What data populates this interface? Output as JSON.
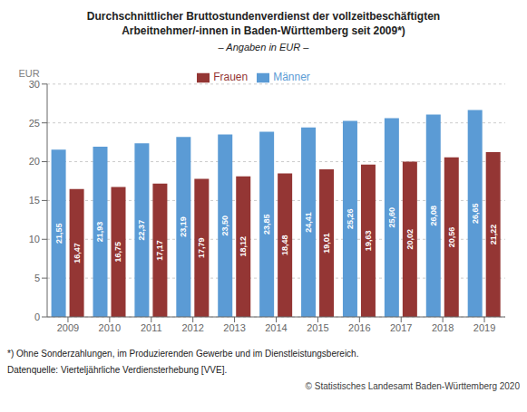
{
  "chart_data": {
    "type": "bar",
    "title": "Durchschnittlicher Bruttostundenverdienst der vollzeitbeschäftigten\nArbeitnehmer/-innen in Baden-Württemberg seit 2009*)",
    "subtitle": "– Angaben in EUR –",
    "y_label": "EUR",
    "categories": [
      "2009",
      "2010",
      "2011",
      "2012",
      "2013",
      "2014",
      "2015",
      "2016",
      "2017",
      "2018",
      "2019"
    ],
    "series": [
      {
        "name": "Männer",
        "color": "#5B9BD5",
        "values": [
          21.55,
          21.93,
          22.37,
          23.19,
          23.5,
          23.85,
          24.41,
          25.26,
          25.6,
          26.08,
          26.65
        ],
        "value_labels": [
          "21,55",
          "21,93",
          "22,37",
          "23,19",
          "23,50",
          "23,85",
          "24,41",
          "25,26",
          "25,60",
          "26,08",
          "26,65"
        ]
      },
      {
        "name": "Frauen",
        "color": "#943634",
        "values": [
          16.47,
          16.75,
          17.17,
          17.79,
          18.12,
          18.48,
          19.01,
          19.63,
          20.02,
          20.56,
          21.22
        ],
        "value_labels": [
          "16,47",
          "16,75",
          "17,17",
          "17,79",
          "18,12",
          "18,48",
          "19,01",
          "19,63",
          "20,02",
          "20,56",
          "21,22"
        ]
      }
    ],
    "ylim": [
      0,
      30
    ],
    "yticks": [
      0,
      5,
      10,
      15,
      20,
      25,
      30
    ],
    "grid": true,
    "legend": "top",
    "data_labels": true,
    "annotations": [
      "*) Ohne Sonderzahlungen, im Produzierenden Gewerbe und im Dienstleistungsbereich.",
      "Datenquelle: Vierteljährliche Verdiensterhebung [VVE].",
      "© Statistisches Landesamt Baden-Württemberg 2020"
    ]
  }
}
